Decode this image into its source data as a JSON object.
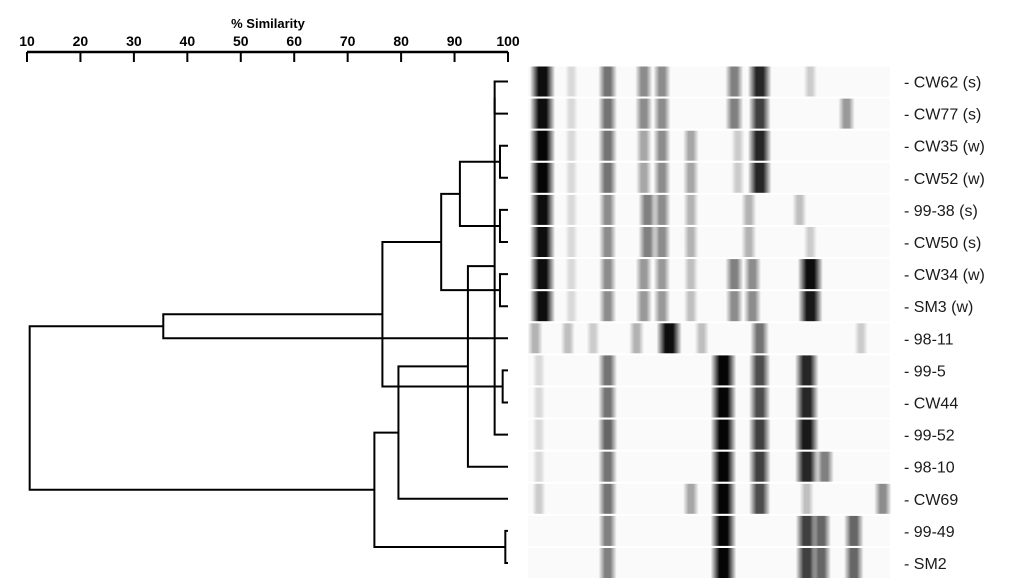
{
  "axis": {
    "title": "% Similarity",
    "min": 10,
    "max": 100,
    "ticks": [
      10,
      20,
      30,
      40,
      50,
      60,
      70,
      80,
      90,
      100
    ]
  },
  "strains": [
    {
      "label": "CW62 (s)",
      "bands": [
        {
          "p": 0.04,
          "s": 0.95
        },
        {
          "p": 0.12,
          "s": 0.15
        },
        {
          "p": 0.22,
          "s": 0.55
        },
        {
          "p": 0.32,
          "s": 0.45
        },
        {
          "p": 0.37,
          "s": 0.45
        },
        {
          "p": 0.57,
          "s": 0.5
        },
        {
          "p": 0.64,
          "s": 0.85
        },
        {
          "p": 0.78,
          "s": 0.2
        }
      ]
    },
    {
      "label": "CW77 (s)",
      "bands": [
        {
          "p": 0.04,
          "s": 0.95
        },
        {
          "p": 0.12,
          "s": 0.15
        },
        {
          "p": 0.22,
          "s": 0.55
        },
        {
          "p": 0.32,
          "s": 0.45
        },
        {
          "p": 0.37,
          "s": 0.45
        },
        {
          "p": 0.57,
          "s": 0.5
        },
        {
          "p": 0.64,
          "s": 0.75
        },
        {
          "p": 0.88,
          "s": 0.4
        }
      ]
    },
    {
      "label": "CW35 (w)",
      "bands": [
        {
          "p": 0.04,
          "s": 0.98
        },
        {
          "p": 0.12,
          "s": 0.15
        },
        {
          "p": 0.22,
          "s": 0.55
        },
        {
          "p": 0.32,
          "s": 0.35
        },
        {
          "p": 0.37,
          "s": 0.45
        },
        {
          "p": 0.45,
          "s": 0.35
        },
        {
          "p": 0.58,
          "s": 0.2
        },
        {
          "p": 0.64,
          "s": 0.85
        }
      ]
    },
    {
      "label": "CW52 (w)",
      "bands": [
        {
          "p": 0.04,
          "s": 0.98
        },
        {
          "p": 0.12,
          "s": 0.15
        },
        {
          "p": 0.22,
          "s": 0.55
        },
        {
          "p": 0.32,
          "s": 0.35
        },
        {
          "p": 0.37,
          "s": 0.45
        },
        {
          "p": 0.45,
          "s": 0.35
        },
        {
          "p": 0.58,
          "s": 0.2
        },
        {
          "p": 0.64,
          "s": 0.85
        }
      ]
    },
    {
      "label": "99-38 (s)",
      "bands": [
        {
          "p": 0.04,
          "s": 0.95
        },
        {
          "p": 0.12,
          "s": 0.15
        },
        {
          "p": 0.22,
          "s": 0.45
        },
        {
          "p": 0.33,
          "s": 0.5
        },
        {
          "p": 0.37,
          "s": 0.45
        },
        {
          "p": 0.45,
          "s": 0.3
        },
        {
          "p": 0.61,
          "s": 0.3
        },
        {
          "p": 0.75,
          "s": 0.25
        }
      ]
    },
    {
      "label": "CW50 (s)",
      "bands": [
        {
          "p": 0.04,
          "s": 0.95
        },
        {
          "p": 0.12,
          "s": 0.15
        },
        {
          "p": 0.22,
          "s": 0.45
        },
        {
          "p": 0.33,
          "s": 0.5
        },
        {
          "p": 0.37,
          "s": 0.45
        },
        {
          "p": 0.45,
          "s": 0.3
        },
        {
          "p": 0.61,
          "s": 0.3
        },
        {
          "p": 0.78,
          "s": 0.2
        }
      ]
    },
    {
      "label": "CW34 (w)",
      "bands": [
        {
          "p": 0.04,
          "s": 0.95
        },
        {
          "p": 0.12,
          "s": 0.15
        },
        {
          "p": 0.22,
          "s": 0.45
        },
        {
          "p": 0.32,
          "s": 0.4
        },
        {
          "p": 0.37,
          "s": 0.4
        },
        {
          "p": 0.45,
          "s": 0.25
        },
        {
          "p": 0.57,
          "s": 0.5
        },
        {
          "p": 0.62,
          "s": 0.45
        },
        {
          "p": 0.78,
          "s": 0.95
        }
      ]
    },
    {
      "label": "SM3 (w)",
      "bands": [
        {
          "p": 0.04,
          "s": 0.95
        },
        {
          "p": 0.12,
          "s": 0.15
        },
        {
          "p": 0.22,
          "s": 0.45
        },
        {
          "p": 0.32,
          "s": 0.4
        },
        {
          "p": 0.37,
          "s": 0.4
        },
        {
          "p": 0.45,
          "s": 0.25
        },
        {
          "p": 0.57,
          "s": 0.45
        },
        {
          "p": 0.62,
          "s": 0.45
        },
        {
          "p": 0.78,
          "s": 0.9
        }
      ]
    },
    {
      "label": "98-11",
      "bands": [
        {
          "p": 0.02,
          "s": 0.3
        },
        {
          "p": 0.11,
          "s": 0.25
        },
        {
          "p": 0.18,
          "s": 0.2
        },
        {
          "p": 0.3,
          "s": 0.3
        },
        {
          "p": 0.39,
          "s": 0.95
        },
        {
          "p": 0.48,
          "s": 0.25
        },
        {
          "p": 0.64,
          "s": 0.55
        },
        {
          "p": 0.92,
          "s": 0.2
        }
      ]
    },
    {
      "label": "99-5",
      "bands": [
        {
          "p": 0.03,
          "s": 0.15
        },
        {
          "p": 0.22,
          "s": 0.55
        },
        {
          "p": 0.54,
          "s": 0.98
        },
        {
          "p": 0.64,
          "s": 0.7
        },
        {
          "p": 0.77,
          "s": 0.85
        }
      ]
    },
    {
      "label": "CW44",
      "bands": [
        {
          "p": 0.03,
          "s": 0.15
        },
        {
          "p": 0.22,
          "s": 0.55
        },
        {
          "p": 0.54,
          "s": 0.98
        },
        {
          "p": 0.64,
          "s": 0.7
        },
        {
          "p": 0.77,
          "s": 0.85
        }
      ]
    },
    {
      "label": "99-52",
      "bands": [
        {
          "p": 0.03,
          "s": 0.15
        },
        {
          "p": 0.22,
          "s": 0.6
        },
        {
          "p": 0.54,
          "s": 0.98
        },
        {
          "p": 0.64,
          "s": 0.75
        },
        {
          "p": 0.77,
          "s": 0.9
        }
      ]
    },
    {
      "label": "98-10",
      "bands": [
        {
          "p": 0.03,
          "s": 0.15
        },
        {
          "p": 0.22,
          "s": 0.55
        },
        {
          "p": 0.54,
          "s": 0.98
        },
        {
          "p": 0.64,
          "s": 0.75
        },
        {
          "p": 0.77,
          "s": 0.85
        },
        {
          "p": 0.82,
          "s": 0.5
        }
      ]
    },
    {
      "label": "CW69",
      "bands": [
        {
          "p": 0.03,
          "s": 0.2
        },
        {
          "p": 0.22,
          "s": 0.55
        },
        {
          "p": 0.45,
          "s": 0.35
        },
        {
          "p": 0.54,
          "s": 0.98
        },
        {
          "p": 0.64,
          "s": 0.7
        },
        {
          "p": 0.77,
          "s": 0.25
        },
        {
          "p": 0.98,
          "s": 0.45
        }
      ]
    },
    {
      "label": "99-49",
      "bands": [
        {
          "p": 0.22,
          "s": 0.5
        },
        {
          "p": 0.54,
          "s": 0.98
        },
        {
          "p": 0.77,
          "s": 0.75
        },
        {
          "p": 0.81,
          "s": 0.6
        },
        {
          "p": 0.9,
          "s": 0.6
        }
      ]
    },
    {
      "label": "SM2",
      "bands": [
        {
          "p": 0.22,
          "s": 0.5
        },
        {
          "p": 0.54,
          "s": 0.98
        },
        {
          "p": 0.77,
          "s": 0.75
        },
        {
          "p": 0.81,
          "s": 0.6
        },
        {
          "p": 0.9,
          "s": 0.6
        }
      ]
    }
  ],
  "clusters": [
    {
      "children": [
        0,
        1
      ],
      "similarity": 97.5
    },
    {
      "children": [
        2,
        3
      ],
      "similarity": 98.5
    },
    {
      "children": [
        4,
        5
      ],
      "similarity": 98.5
    },
    {
      "children": [
        6,
        7
      ],
      "similarity": 98.5
    },
    {
      "children": [
        9,
        10
      ],
      "similarity": 99.0
    },
    {
      "children": [
        14,
        15
      ],
      "similarity": 99.5
    },
    {
      "children": [
        16,
        11
      ],
      "similarity": 97.5
    },
    {
      "children": [
        22,
        12
      ],
      "similarity": 92.5
    },
    {
      "children": [
        23,
        13
      ],
      "similarity": 79.5
    },
    {
      "children": [
        24,
        21
      ],
      "similarity": 75.0
    },
    {
      "children": [
        17,
        18
      ],
      "similarity": 91.0
    },
    {
      "children": [
        26,
        19
      ],
      "similarity": 87.5
    },
    {
      "children": [
        27,
        20
      ],
      "similarity": 76.5
    },
    {
      "children": [
        28,
        8
      ],
      "similarity": 35.5
    },
    {
      "children": [
        29,
        25
      ],
      "similarity": 10.5
    }
  ]
}
